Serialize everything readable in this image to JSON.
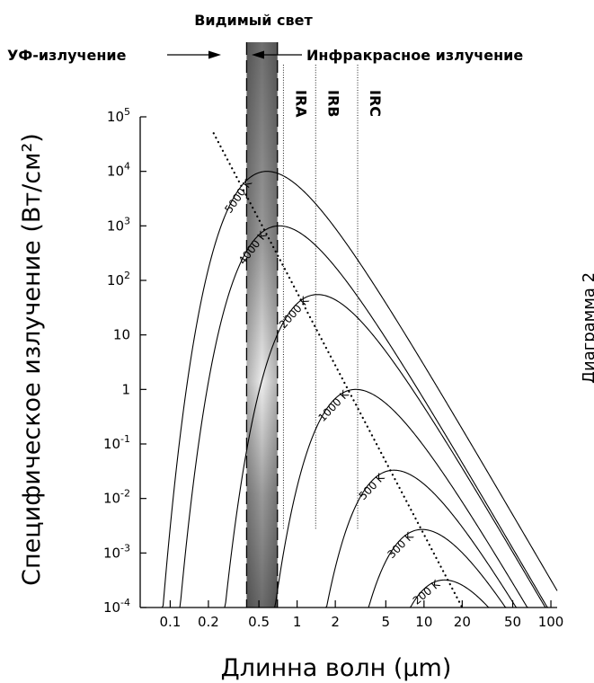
{
  "labels": {
    "visible": "Видимый свет",
    "uv": "УФ-излучение",
    "ir": "Инфракрасное излучение",
    "cut_edge": "Диаграмма 2"
  },
  "chart_data": {
    "type": "line",
    "title": "",
    "xlabel": "Длинна волн (μm)",
    "ylabel": "Специфическое излучение (Вт/см²)",
    "x_scale": "log",
    "y_scale": "log",
    "xlim": [
      0.058,
      112
    ],
    "ylim": [
      0.0001,
      100000
    ],
    "x_ticks": [
      {
        "value": 0.1,
        "label": "0.1"
      },
      {
        "value": 0.2,
        "label": "0.2"
      },
      {
        "value": 0.5,
        "label": "0.5"
      },
      {
        "value": 1,
        "label": "1"
      },
      {
        "value": 2,
        "label": "2"
      },
      {
        "value": 5,
        "label": "5"
      },
      {
        "value": 10,
        "label": "10"
      },
      {
        "value": 20,
        "label": "20"
      },
      {
        "value": 50,
        "label": "50"
      },
      {
        "value": 100,
        "label": "100"
      }
    ],
    "y_ticks": [
      {
        "value": 100000,
        "base": "10",
        "exp": "5",
        "label": ""
      },
      {
        "value": 10000,
        "base": "10",
        "exp": "4",
        "label": ""
      },
      {
        "value": 1000,
        "base": "10",
        "exp": "3",
        "label": ""
      },
      {
        "value": 100,
        "base": "10",
        "exp": "2",
        "label": ""
      },
      {
        "value": 10,
        "base": "",
        "exp": "",
        "label": "10"
      },
      {
        "value": 1,
        "base": "",
        "exp": "",
        "label": "1"
      },
      {
        "value": 0.1,
        "base": "10",
        "exp": "-1",
        "label": ""
      },
      {
        "value": 0.01,
        "base": "10",
        "exp": "-2",
        "label": ""
      },
      {
        "value": 0.001,
        "base": "10",
        "exp": "-3",
        "label": ""
      },
      {
        "value": 0.0001,
        "base": "10",
        "exp": "-4",
        "label": ""
      }
    ],
    "series": [
      {
        "name": "5000 K",
        "temperature": 5000,
        "peak_x": 0.58,
        "peak_y": 10000
      },
      {
        "name": "4000 K",
        "temperature": 4000,
        "peak_x": 0.725,
        "peak_y": 1000
      },
      {
        "name": "2000 K",
        "temperature": 2000,
        "peak_x": 1.45,
        "peak_y": 55
      },
      {
        "name": "1000 K",
        "temperature": 1000,
        "peak_x": 2.9,
        "peak_y": 1.0
      },
      {
        "name": "500 K",
        "temperature": 500,
        "peak_x": 5.8,
        "peak_y": 0.033
      },
      {
        "name": "300 K",
        "temperature": 300,
        "peak_x": 9.7,
        "peak_y": 0.0027
      },
      {
        "name": "200 K",
        "temperature": 200,
        "peak_x": 14.5,
        "peak_y": 0.00032
      }
    ],
    "wien_line": {
      "x": [
        0.22,
        20
      ],
      "y": [
        50000,
        0.0001
      ],
      "style": "dotted"
    },
    "bands": [
      {
        "name": "Visible",
        "x_range": [
          0.4,
          0.7
        ]
      },
      {
        "name": "IRA",
        "boundary_x": 0.78
      },
      {
        "name": "IRB",
        "boundary_x": 1.4
      },
      {
        "name": "IRC",
        "boundary_x": 3.0
      }
    ],
    "band_labels": [
      "IRA",
      "IRB",
      "IRC"
    ],
    "grid": false,
    "legend": "none"
  }
}
